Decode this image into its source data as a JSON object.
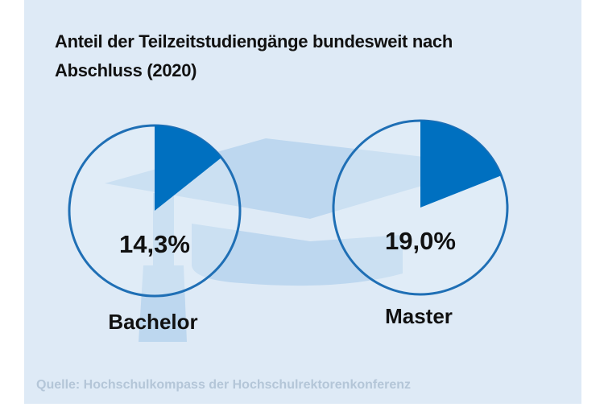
{
  "chart_data": {
    "type": "pie",
    "title": "Anteil der Teilzeitstudiengänge bundesweit nach\nAbschluss (2020)",
    "categories": [
      "Bachelor",
      "Master"
    ],
    "values": [
      14.3,
      19.0
    ],
    "value_labels": [
      "14,3%",
      "19,0%"
    ],
    "color": "#0070c0",
    "source": "Quelle: Hochschulkompass der Hochschulrektorenkonferenz"
  }
}
